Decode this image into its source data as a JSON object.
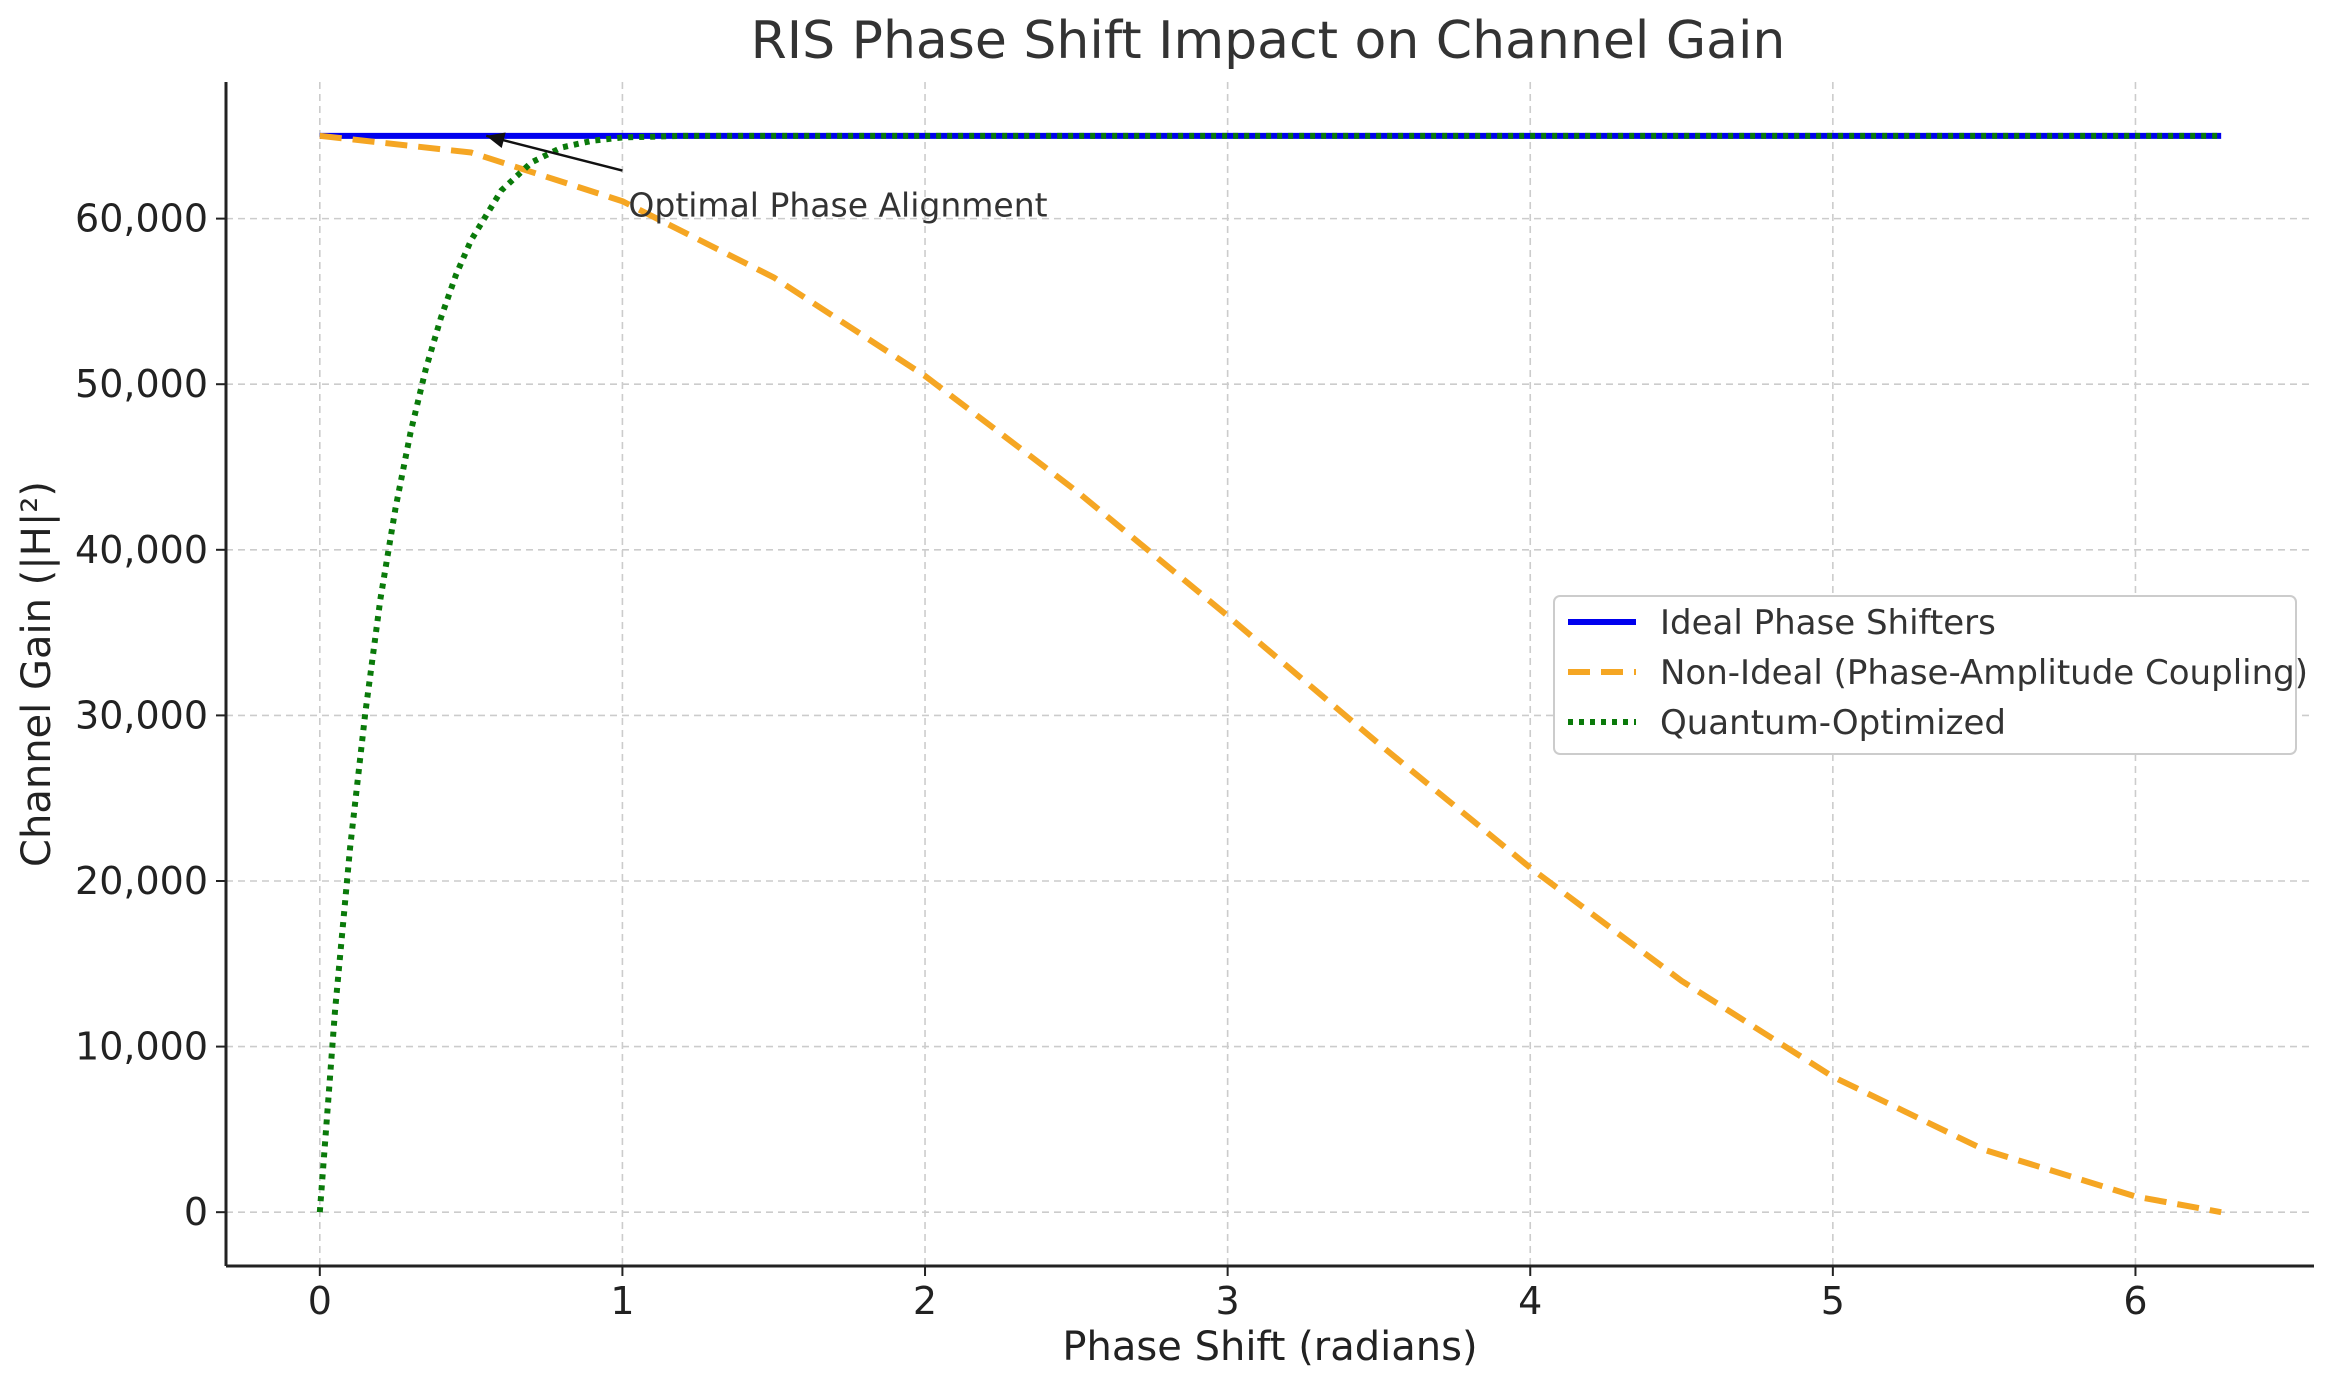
{
  "chart_data": {
    "type": "line",
    "title": "RIS Phase Shift Impact on Channel Gain",
    "xlabel": "Phase Shift (radians)",
    "ylabel": "Channel Gain (|H|²)",
    "xlim": [
      -0.31,
      6.59
    ],
    "ylim": [
      -3250,
      68250
    ],
    "xticks": [
      0,
      1,
      2,
      3,
      4,
      5,
      6
    ],
    "xtick_labels": [
      "0",
      "1",
      "2",
      "3",
      "4",
      "5",
      "6"
    ],
    "yticks": [
      0,
      10000,
      20000,
      30000,
      40000,
      50000,
      60000
    ],
    "ytick_labels": [
      "0",
      "10,000",
      "20,000",
      "30,000",
      "40,000",
      "50,000",
      "60,000"
    ],
    "grid": true,
    "legend_position": "center-right",
    "series": [
      {
        "name": "Ideal Phase Shifters",
        "color": "#0000ee",
        "style": "solid",
        "x": [
          0,
          6.2832
        ],
        "y": [
          65000,
          65000
        ]
      },
      {
        "name": "Non-Ideal (Phase-Amplitude Coupling)",
        "color": "#f5a623",
        "style": "dashed",
        "x": [
          0,
          0.5,
          1.0,
          1.5,
          2.0,
          2.5,
          3.0,
          3.5,
          4.0,
          4.5,
          5.0,
          5.5,
          6.0,
          6.2832
        ],
        "y": [
          65000,
          63990,
          61050,
          56450,
          50500,
          43550,
          36010,
          28280,
          20800,
          13970,
          8180,
          3770,
          950,
          0
        ]
      },
      {
        "name": "Quantum-Optimized",
        "color": "#0a7a0a",
        "style": "dotted",
        "x": [
          0,
          0.05,
          0.1,
          0.15,
          0.2,
          0.25,
          0.3,
          0.35,
          0.4,
          0.45,
          0.5,
          0.6,
          0.7,
          0.8,
          0.9,
          1.0,
          1.2,
          1.5,
          2.0,
          3.0,
          4.0,
          5.0,
          6.0,
          6.2832
        ],
        "y": [
          0,
          12100,
          22000,
          30100,
          37000,
          42500,
          47100,
          50900,
          54000,
          56600,
          58700,
          61700,
          63400,
          64300,
          64700,
          64900,
          65000,
          65000,
          65000,
          65000,
          65000,
          65000,
          65000,
          65000
        ]
      }
    ],
    "annotation": {
      "text": "Optimal Phase Alignment",
      "point": [
        0.55,
        65000
      ],
      "text_anchor": [
        1.0,
        62300
      ]
    }
  }
}
